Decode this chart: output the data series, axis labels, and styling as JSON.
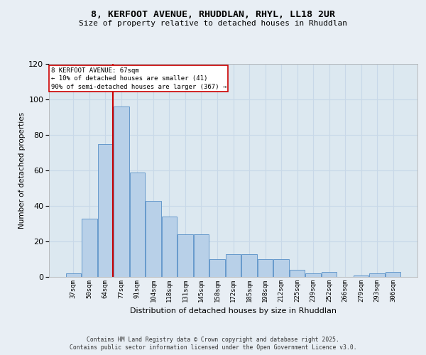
{
  "title": "8, KERFOOT AVENUE, RHUDDLAN, RHYL, LL18 2UR",
  "subtitle": "Size of property relative to detached houses in Rhuddlan",
  "xlabel": "Distribution of detached houses by size in Rhuddlan",
  "ylabel": "Number of detached properties",
  "bar_labels": [
    "37sqm",
    "50sqm",
    "64sqm",
    "77sqm",
    "91sqm",
    "104sqm",
    "118sqm",
    "131sqm",
    "145sqm",
    "158sqm",
    "172sqm",
    "185sqm",
    "198sqm",
    "212sqm",
    "225sqm",
    "239sqm",
    "252sqm",
    "266sqm",
    "279sqm",
    "293sqm",
    "306sqm"
  ],
  "bar_values": [
    2,
    33,
    75,
    96,
    59,
    43,
    34,
    24,
    24,
    10,
    13,
    13,
    10,
    10,
    4,
    2,
    3,
    0,
    1,
    2,
    3
  ],
  "bar_color": "#b8d0e8",
  "bar_edge_color": "#6699cc",
  "grid_color": "#c8d8e8",
  "background_color": "#dce8f0",
  "fig_background": "#e8eef4",
  "property_label": "8 KERFOOT AVENUE: 67sqm",
  "annotation_line1": "← 10% of detached houses are smaller (41)",
  "annotation_line2": "90% of semi-detached houses are larger (367) →",
  "red_line_color": "#cc0000",
  "annotation_box_color": "#ffffff",
  "annotation_box_edge": "#cc0000",
  "ylim": [
    0,
    120
  ],
  "yticks": [
    0,
    20,
    40,
    60,
    80,
    100,
    120
  ],
  "footer_line1": "Contains HM Land Registry data © Crown copyright and database right 2025.",
  "footer_line2": "Contains public sector information licensed under the Open Government Licence v3.0."
}
